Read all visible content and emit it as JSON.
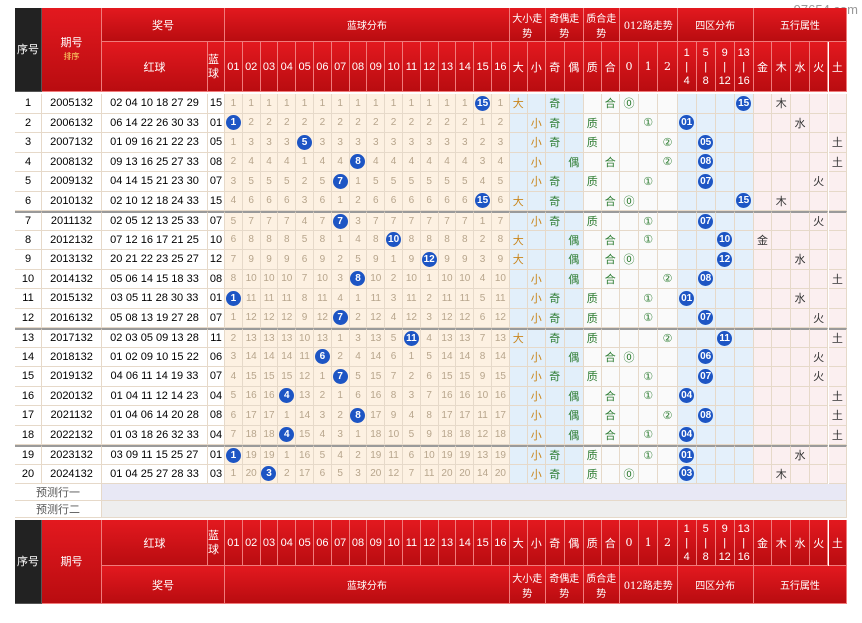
{
  "watermark": "97654.com",
  "columns": {
    "seq": "序号",
    "issue": "期号",
    "sort": "排序",
    "prize": "奖号",
    "red": "红球",
    "blue": "蓝球",
    "blue_dist": "蓝球分布",
    "size": "大小走势",
    "parity": "奇偶走势",
    "prime": "质合走势",
    "mod": "012路走势",
    "zone": "四区分布",
    "element": "五行属性"
  },
  "blue_numbers": [
    "01",
    "02",
    "03",
    "04",
    "05",
    "06",
    "07",
    "08",
    "09",
    "10",
    "11",
    "12",
    "13",
    "14",
    "15",
    "16"
  ],
  "size_labels": [
    "大",
    "小"
  ],
  "parity_labels": [
    "奇",
    "偶"
  ],
  "prime_labels": [
    "质",
    "合"
  ],
  "mod_labels": [
    "0",
    "1",
    "2"
  ],
  "mod_marks": [
    "⓪",
    "①",
    "②"
  ],
  "zone_sep": "|",
  "zone_labels": [
    {
      "from": "1",
      "to": "4"
    },
    {
      "from": "5",
      "to": "8"
    },
    {
      "from": "9",
      "to": "12"
    },
    {
      "from": "13",
      "to": "16"
    }
  ],
  "element_labels": [
    "金",
    "木",
    "水",
    "火",
    "土"
  ],
  "rows": [
    {
      "seq": 1,
      "issue": "2005132",
      "red": "02 04 10 18 27 29",
      "blue": "15",
      "omissions": [
        1,
        1,
        1,
        1,
        1,
        1,
        1,
        1,
        1,
        1,
        1,
        1,
        1,
        1,
        15,
        1
      ],
      "size": "大",
      "parity": "奇",
      "prime": "合",
      "mod": "⓪",
      "element": "木"
    },
    {
      "seq": 2,
      "issue": "2006132",
      "red": "06 14 22 26 30 33",
      "blue": "01",
      "omissions": [
        1,
        2,
        2,
        2,
        2,
        2,
        2,
        2,
        2,
        2,
        2,
        2,
        2,
        2,
        1,
        2
      ],
      "size": "小",
      "parity": "奇",
      "prime": "质",
      "mod": "①",
      "element": "水"
    },
    {
      "seq": 3,
      "issue": "2007132",
      "red": "01 09 16 21 22 23",
      "blue": "05",
      "omissions": [
        1,
        3,
        3,
        3,
        5,
        3,
        3,
        3,
        3,
        3,
        3,
        3,
        3,
        3,
        2,
        3
      ],
      "size": "小",
      "parity": "奇",
      "prime": "质",
      "mod": "②",
      "element": "土"
    },
    {
      "seq": 4,
      "issue": "2008132",
      "red": "09 13 16 25 27 33",
      "blue": "08",
      "omissions": [
        2,
        4,
        4,
        4,
        1,
        4,
        4,
        8,
        4,
        4,
        4,
        4,
        4,
        4,
        3,
        4
      ],
      "size": "小",
      "parity": "偶",
      "prime": "合",
      "mod": "②",
      "element": "土"
    },
    {
      "seq": 5,
      "issue": "2009132",
      "red": "04 14 15 21 23 30",
      "blue": "07",
      "omissions": [
        3,
        5,
        5,
        5,
        2,
        5,
        7,
        1,
        5,
        5,
        5,
        5,
        5,
        5,
        4,
        5
      ],
      "size": "小",
      "parity": "奇",
      "prime": "质",
      "mod": "①",
      "element": "火"
    },
    {
      "seq": 6,
      "issue": "2010132",
      "red": "02 10 12 18 24 33",
      "blue": "15",
      "omissions": [
        4,
        6,
        6,
        6,
        3,
        6,
        1,
        2,
        6,
        6,
        6,
        6,
        6,
        6,
        15,
        6
      ],
      "size": "大",
      "parity": "奇",
      "prime": "合",
      "mod": "⓪",
      "element": "木"
    },
    {
      "seq": 7,
      "issue": "2011132",
      "red": "02 05 12 13 25 33",
      "blue": "07",
      "omissions": [
        5,
        7,
        7,
        7,
        4,
        7,
        7,
        3,
        7,
        7,
        7,
        7,
        7,
        7,
        1,
        7
      ],
      "size": "小",
      "parity": "奇",
      "prime": "质",
      "mod": "①",
      "element": "火"
    },
    {
      "seq": 8,
      "issue": "2012132",
      "red": "07 12 16 17 21 25",
      "blue": "10",
      "omissions": [
        6,
        8,
        8,
        8,
        5,
        8,
        1,
        4,
        8,
        10,
        8,
        8,
        8,
        8,
        2,
        8
      ],
      "size": "大",
      "parity": "偶",
      "prime": "合",
      "mod": "①",
      "element": "金"
    },
    {
      "seq": 9,
      "issue": "2013132",
      "red": "20 21 22 23 25 27",
      "blue": "12",
      "omissions": [
        7,
        9,
        9,
        9,
        6,
        9,
        2,
        5,
        9,
        1,
        9,
        12,
        9,
        9,
        3,
        9
      ],
      "size": "大",
      "parity": "偶",
      "prime": "合",
      "mod": "⓪",
      "element": "水"
    },
    {
      "seq": 10,
      "issue": "2014132",
      "red": "05 06 14 15 18 33",
      "blue": "08",
      "omissions": [
        8,
        10,
        10,
        10,
        7,
        10,
        3,
        8,
        10,
        2,
        10,
        1,
        10,
        10,
        4,
        10
      ],
      "size": "小",
      "parity": "偶",
      "prime": "合",
      "mod": "②",
      "element": "土"
    },
    {
      "seq": 11,
      "issue": "2015132",
      "red": "03 05 11 28 30 33",
      "blue": "01",
      "omissions": [
        1,
        11,
        11,
        11,
        8,
        11,
        4,
        1,
        11,
        3,
        11,
        2,
        11,
        11,
        5,
        11
      ],
      "size": "小",
      "parity": "奇",
      "prime": "质",
      "mod": "①",
      "element": "水"
    },
    {
      "seq": 12,
      "issue": "2016132",
      "red": "05 08 13 19 27 28",
      "blue": "07",
      "omissions": [
        1,
        12,
        12,
        12,
        9,
        12,
        7,
        2,
        12,
        4,
        12,
        3,
        12,
        12,
        6,
        12
      ],
      "size": "小",
      "parity": "奇",
      "prime": "质",
      "mod": "①",
      "element": "火"
    },
    {
      "seq": 13,
      "issue": "2017132",
      "red": "02 03 05 09 13 28",
      "blue": "11",
      "omissions": [
        2,
        13,
        13,
        13,
        10,
        13,
        1,
        3,
        13,
        5,
        11,
        4,
        13,
        13,
        7,
        13
      ],
      "size": "大",
      "parity": "奇",
      "prime": "质",
      "mod": "②",
      "element": "土"
    },
    {
      "seq": 14,
      "issue": "2018132",
      "red": "01 02 09 10 15 22",
      "blue": "06",
      "omissions": [
        3,
        14,
        14,
        14,
        11,
        6,
        2,
        4,
        14,
        6,
        1,
        5,
        14,
        14,
        8,
        14
      ],
      "size": "小",
      "parity": "偶",
      "prime": "合",
      "mod": "⓪",
      "element": "火"
    },
    {
      "seq": 15,
      "issue": "2019132",
      "red": "04 06 11 14 19 33",
      "blue": "07",
      "omissions": [
        4,
        15,
        15,
        15,
        12,
        1,
        7,
        5,
        15,
        7,
        2,
        6,
        15,
        15,
        9,
        15
      ],
      "size": "小",
      "parity": "奇",
      "prime": "质",
      "mod": "①",
      "element": "火"
    },
    {
      "seq": 16,
      "issue": "2020132",
      "red": "01 04 11 12 14 23",
      "blue": "04",
      "omissions": [
        5,
        16,
        16,
        4,
        13,
        2,
        1,
        6,
        16,
        8,
        3,
        7,
        16,
        16,
        10,
        16
      ],
      "size": "小",
      "parity": "偶",
      "prime": "合",
      "mod": "①",
      "element": "土"
    },
    {
      "seq": 17,
      "issue": "2021132",
      "red": "01 04 06 14 20 28",
      "blue": "08",
      "omissions": [
        6,
        17,
        17,
        1,
        14,
        3,
        2,
        8,
        17,
        9,
        4,
        8,
        17,
        17,
        11,
        17
      ],
      "size": "小",
      "parity": "偶",
      "prime": "合",
      "mod": "②",
      "element": "土"
    },
    {
      "seq": 18,
      "issue": "2022132",
      "red": "01 03 18 26 32 33",
      "blue": "04",
      "omissions": [
        7,
        18,
        18,
        4,
        15,
        4,
        3,
        1,
        18,
        10,
        5,
        9,
        18,
        18,
        12,
        18
      ],
      "size": "小",
      "parity": "偶",
      "prime": "合",
      "mod": "①",
      "element": "土"
    },
    {
      "seq": 19,
      "issue": "2023132",
      "red": "03 09 11 15 25 27",
      "blue": "01",
      "omissions": [
        1,
        19,
        19,
        1,
        16,
        5,
        4,
        2,
        19,
        11,
        6,
        10,
        19,
        19,
        13,
        19
      ],
      "size": "小",
      "parity": "奇",
      "prime": "质",
      "mod": "①",
      "element": "水"
    },
    {
      "seq": 20,
      "issue": "2024132",
      "red": "01 04 25 27 28 33",
      "blue": "03",
      "omissions": [
        1,
        20,
        3,
        2,
        17,
        6,
        5,
        3,
        20,
        12,
        7,
        11,
        20,
        20,
        14,
        20
      ],
      "size": "小",
      "parity": "奇",
      "prime": "质",
      "mod": "⓪",
      "element": "木"
    }
  ],
  "predictions": [
    "预测行一",
    "预测行二"
  ]
}
